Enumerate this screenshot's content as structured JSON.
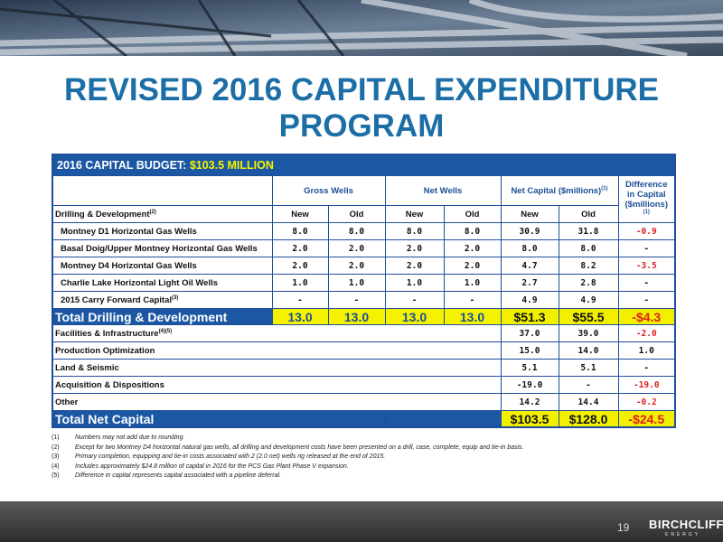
{
  "header": {
    "title": "REVISED 2016 CAPITAL EXPENDITURE PROGRAM"
  },
  "table": {
    "budget_label": "2016 CAPITAL BUDGET:",
    "budget_value": "$103.5 MILLION",
    "groups": [
      {
        "text": "Gross Wells"
      },
      {
        "text": "Net Wells"
      },
      {
        "text": "Net Capital ($millions)",
        "note": "(1)"
      }
    ],
    "difference_header": {
      "text": "Difference in Capital ($millions)",
      "note": "(1)"
    },
    "section_label": {
      "text": "Drilling & Development",
      "note": "(2)"
    },
    "column_labels": [
      "New",
      "Old",
      "New",
      "Old",
      "New",
      "Old"
    ],
    "drilling_rows": [
      {
        "label": "Montney D1 Horizontal Gas Wells",
        "values": [
          "8.0",
          "8.0",
          "8.0",
          "8.0",
          "30.9",
          "31.8",
          "-0.9"
        ]
      },
      {
        "label": "Basal Doig/Upper Montney Horizontal Gas Wells",
        "values": [
          "2.0",
          "2.0",
          "2.0",
          "2.0",
          "8.0",
          "8.0",
          "-"
        ]
      },
      {
        "label": "Montney D4 Horizontal Gas Wells",
        "values": [
          "2.0",
          "2.0",
          "2.0",
          "2.0",
          "4.7",
          "8.2",
          "-3.5"
        ]
      },
      {
        "label": "Charlie Lake Horizontal Light Oil Wells",
        "values": [
          "1.0",
          "1.0",
          "1.0",
          "1.0",
          "2.7",
          "2.8",
          "-"
        ]
      },
      {
        "label": "2015 Carry Forward Capital",
        "note": "(3)",
        "values": [
          "-",
          "-",
          "-",
          "-",
          "4.9",
          "4.9",
          "-"
        ]
      }
    ],
    "drilling_total": {
      "label": "Total Drilling & Development",
      "values": [
        "13.0",
        "13.0",
        "13.0",
        "13.0",
        "$51.3",
        "$55.5",
        "-$4.3"
      ]
    },
    "other_rows": [
      {
        "label": "Facilities & Infrastructure",
        "note": "(4)(5)",
        "values": [
          "37.0",
          "39.0",
          "-2.0"
        ]
      },
      {
        "label": "Production Optimization",
        "values": [
          "15.0",
          "14.0",
          "1.0"
        ]
      },
      {
        "label": "Land & Seismic",
        "values": [
          "5.1",
          "5.1",
          "-"
        ]
      },
      {
        "label": "Acquisition & Dispositions",
        "values": [
          "-19.0",
          "-",
          "-19.0"
        ]
      },
      {
        "label": "Other",
        "values": [
          "14.2",
          "14.4",
          "-0.2"
        ]
      }
    ],
    "net_total": {
      "label": "Total Net Capital",
      "values": [
        "$103.5",
        "$128.0",
        "-$24.5"
      ]
    }
  },
  "footnotes": [
    {
      "mark": "(1)",
      "text": "Numbers may not add due to rounding."
    },
    {
      "mark": "(2)",
      "text": "Except for two Montney D4 horizontal natural gas wells, all drilling and development costs have been presented on a drill, case, complete, equip and tie-in basis."
    },
    {
      "mark": "(3)",
      "text": "Primary completion, equipping and tie-in costs associated with 2 (2.0 net) wells rig released at the end of 2015."
    },
    {
      "mark": "(4)",
      "text": "Includes approximately $24.8 million of capital in 2016 for the PCS Gas Plant Phase V expansion."
    },
    {
      "mark": "(5)",
      "text": "Difference in capital represents capital associated with a pipeline deferral."
    }
  ],
  "footer": {
    "page": "19",
    "logo": "BIRCHCLIFF",
    "logo_sub": "ENERGY"
  }
}
